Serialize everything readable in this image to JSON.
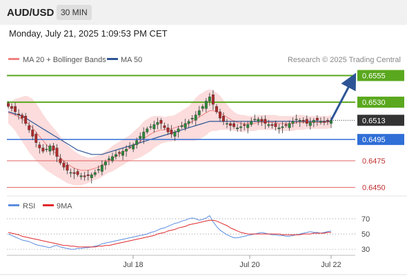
{
  "header": {
    "pair": "AUD/USD",
    "timeframe": "30 MIN",
    "datetime": "Monday, July 21, 2025 1:09:53 PM CET"
  },
  "credit": "Research © 2025 Trading Central",
  "legend": {
    "ma20_bb": "MA 20 + Bollinger Bands",
    "ma50": "MA 50",
    "rsi": "RSI",
    "rsi_ma": "9MA"
  },
  "colors": {
    "candle_up": "#2a8a3a",
    "candle_down": "#b22a2a",
    "bollinger_fill": "#fcdcdc",
    "ma20": "#f08080",
    "ma50": "#2d5596",
    "resistance": "#5aa81e",
    "support_blue": "#2f6fd6",
    "support_red": "#e06060",
    "arrow": "#2d5596",
    "rsi_line": "#5b8de0",
    "rsi_ma_line": "#e0282b"
  },
  "chart_data": [
    {
      "type": "candlestick",
      "title": "AUD/USD 30 MIN",
      "x_ticks": [
        "Jul 18",
        "Jul 20",
        "Jul 22"
      ],
      "ylim": [
        0.6442,
        0.6565
      ],
      "current_price": "0.6513",
      "levels": [
        {
          "label": "0.6555",
          "value": 0.6555,
          "kind": "resistance"
        },
        {
          "label": "0.6530",
          "value": 0.653,
          "kind": "resistance"
        },
        {
          "label": "0.6495",
          "value": 0.6495,
          "kind": "support"
        },
        {
          "label": "0.6475",
          "value": 0.6475,
          "kind": "support"
        },
        {
          "label": "0.6450",
          "value": 0.645,
          "kind": "support"
        }
      ],
      "closes": [
        0.6526,
        0.6524,
        0.6521,
        0.6518,
        0.6515,
        0.651,
        0.6504,
        0.6498,
        0.6492,
        0.6487,
        0.6484,
        0.6486,
        0.6489,
        0.6485,
        0.6479,
        0.6473,
        0.6469,
        0.6466,
        0.6464,
        0.6463,
        0.6462,
        0.6461,
        0.646,
        0.6461,
        0.6462,
        0.6464,
        0.6467,
        0.6471,
        0.6474,
        0.6477,
        0.6479,
        0.6481,
        0.6482,
        0.6484,
        0.6486,
        0.6488,
        0.649,
        0.6494,
        0.6498,
        0.6502,
        0.6505,
        0.6507,
        0.6509,
        0.6511,
        0.651,
        0.6506,
        0.6502,
        0.65,
        0.6502,
        0.6505,
        0.6508,
        0.651,
        0.6512,
        0.6515,
        0.6518,
        0.6522,
        0.6526,
        0.6531,
        0.6535,
        0.6528,
        0.6521,
        0.6515,
        0.6512,
        0.651,
        0.6508,
        0.6507,
        0.6506,
        0.6507,
        0.6508,
        0.6509,
        0.6512,
        0.6514,
        0.6514,
        0.6512,
        0.651,
        0.6509,
        0.6508,
        0.6507,
        0.6506,
        0.6507,
        0.6508,
        0.651,
        0.6512,
        0.6514,
        0.6513,
        0.6512,
        0.651,
        0.6511,
        0.6513,
        0.6513,
        0.6512,
        0.6511,
        0.6512,
        0.6513
      ],
      "ma20": [
        0.652,
        0.6519,
        0.6518,
        0.6516,
        0.6514,
        0.6512,
        0.6509,
        0.6506,
        0.6502,
        0.6498,
        0.6494,
        0.649,
        0.6487,
        0.6484,
        0.6481,
        0.6478,
        0.6475,
        0.6472,
        0.647,
        0.6468,
        0.6467,
        0.6466,
        0.6466,
        0.6466,
        0.6467,
        0.6468,
        0.6469,
        0.6471,
        0.6473,
        0.6475,
        0.6477,
        0.6479,
        0.6481,
        0.6483,
        0.6485,
        0.6487,
        0.6489,
        0.6491,
        0.6493,
        0.6496,
        0.6498,
        0.65,
        0.6502,
        0.6503,
        0.6504,
        0.6504,
        0.6505,
        0.6505,
        0.6506,
        0.6507,
        0.6508,
        0.6509,
        0.651,
        0.6512,
        0.6514,
        0.6516,
        0.6518,
        0.652,
        0.6522,
        0.6522,
        0.6521,
        0.652,
        0.6518,
        0.6516,
        0.6514,
        0.6512,
        0.6511,
        0.651,
        0.651,
        0.651,
        0.651,
        0.651,
        0.6511,
        0.6511,
        0.6511,
        0.6511,
        0.6511,
        0.6511,
        0.651,
        0.651,
        0.651,
        0.651,
        0.651,
        0.6511,
        0.6511,
        0.6511,
        0.6511,
        0.6511,
        0.6511,
        0.6511,
        0.6511,
        0.6511,
        0.6511,
        0.6512
      ],
      "ma50": [
        0.6521,
        0.652,
        0.6519,
        0.6518,
        0.6517,
        0.6515,
        0.6513,
        0.6511,
        0.6509,
        0.6507,
        0.6505,
        0.6503,
        0.6501,
        0.6499,
        0.6497,
        0.6495,
        0.6493,
        0.6491,
        0.6489,
        0.6487,
        0.6485,
        0.6484,
        0.6483,
        0.6482,
        0.6481,
        0.6481,
        0.6481,
        0.6481,
        0.6482,
        0.6483,
        0.6484,
        0.6485,
        0.6486,
        0.6487,
        0.6488,
        0.6489,
        0.649,
        0.6491,
        0.6492,
        0.6493,
        0.6494,
        0.6495,
        0.6496,
        0.6497,
        0.6498,
        0.6499,
        0.65,
        0.6501,
        0.6502,
        0.6503,
        0.6504,
        0.6505,
        0.6506,
        0.6507,
        0.6508,
        0.6509,
        0.651,
        0.6511,
        0.6512,
        0.6512,
        0.6512,
        0.6512,
        0.6512,
        0.6512,
        0.6512,
        0.6512,
        0.6512,
        0.6512,
        0.6512,
        0.6512,
        0.6512,
        0.6512,
        0.6512,
        0.6512,
        0.6512,
        0.6512,
        0.6512,
        0.6512,
        0.6512,
        0.6512,
        0.6512,
        0.6512,
        0.6512,
        0.6512,
        0.6512,
        0.6512,
        0.6512,
        0.6512,
        0.6512,
        0.6512,
        0.6512,
        0.6512,
        0.6512,
        0.6512
      ],
      "bb_width": [
        0.001,
        0.0012,
        0.0015,
        0.0018,
        0.0021,
        0.0024,
        0.0026,
        0.0027,
        0.0027,
        0.0026,
        0.0025,
        0.0024,
        0.0023,
        0.0022,
        0.0021,
        0.002,
        0.0019,
        0.0018,
        0.0017,
        0.0016,
        0.0015,
        0.0014,
        0.0013,
        0.0012,
        0.0011,
        0.0011,
        0.0011,
        0.0011,
        0.0011,
        0.0011,
        0.0012,
        0.0012,
        0.0012,
        0.0012,
        0.0012,
        0.0012,
        0.0013,
        0.0014,
        0.0015,
        0.0016,
        0.0016,
        0.0016,
        0.0015,
        0.0014,
        0.0013,
        0.0012,
        0.0012,
        0.0012,
        0.0012,
        0.0013,
        0.0014,
        0.0015,
        0.0016,
        0.0018,
        0.002,
        0.0021,
        0.0021,
        0.0021,
        0.002,
        0.0019,
        0.0018,
        0.0016,
        0.0014,
        0.0012,
        0.001,
        0.0009,
        0.0008,
        0.0008,
        0.0008,
        0.0007,
        0.0007,
        0.0007,
        0.0007,
        0.0007,
        0.0007,
        0.0007,
        0.0007,
        0.0007,
        0.0007,
        0.0007,
        0.0007,
        0.0007,
        0.0007,
        0.0007,
        0.0007,
        0.0007,
        0.0006,
        0.0006,
        0.0006,
        0.0006,
        0.0006,
        0.0006,
        0.0006,
        0.0006
      ]
    },
    {
      "type": "line",
      "title": "RSI",
      "y_ticks": [
        "70",
        "50",
        "30"
      ],
      "ylim": [
        22,
        80
      ],
      "series": [
        {
          "name": "RSI",
          "values": [
            50,
            48,
            46,
            44,
            42,
            41,
            40,
            38,
            36,
            35,
            34,
            33,
            32,
            34,
            35,
            33,
            32,
            31,
            30,
            30,
            31,
            31,
            32,
            32,
            33,
            34,
            35,
            37,
            38,
            39,
            40,
            41,
            42,
            43,
            44,
            45,
            46,
            47,
            48,
            49,
            50,
            52,
            53,
            55,
            57,
            58,
            60,
            62,
            64,
            65,
            67,
            68,
            70,
            71,
            70,
            68,
            69,
            71,
            74,
            66,
            60,
            55,
            52,
            49,
            47,
            45,
            45,
            46,
            47,
            48,
            49,
            50,
            51,
            52,
            51,
            50,
            49,
            49,
            48,
            48,
            47,
            47,
            48,
            49,
            50,
            51,
            52,
            53,
            52,
            52,
            51,
            52,
            53,
            54
          ]
        },
        {
          "name": "9MA",
          "values": [
            52,
            51,
            50,
            49,
            47,
            46,
            45,
            44,
            43,
            42,
            41,
            40,
            39,
            38,
            37,
            36,
            35,
            35,
            34,
            34,
            33,
            33,
            33,
            33,
            33,
            33,
            34,
            34,
            35,
            35,
            36,
            37,
            38,
            39,
            40,
            41,
            42,
            43,
            44,
            45,
            46,
            47,
            48,
            50,
            51,
            52,
            54,
            55,
            56,
            58,
            59,
            60,
            62,
            63,
            64,
            65,
            66,
            67,
            68,
            68,
            67,
            65,
            63,
            61,
            58,
            56,
            54,
            52,
            51,
            50,
            50,
            50,
            50,
            50,
            50,
            50,
            50,
            50,
            50,
            49,
            49,
            49,
            49,
            49,
            49,
            50,
            50,
            50,
            51,
            51,
            51,
            51,
            52,
            52
          ]
        }
      ]
    }
  ]
}
